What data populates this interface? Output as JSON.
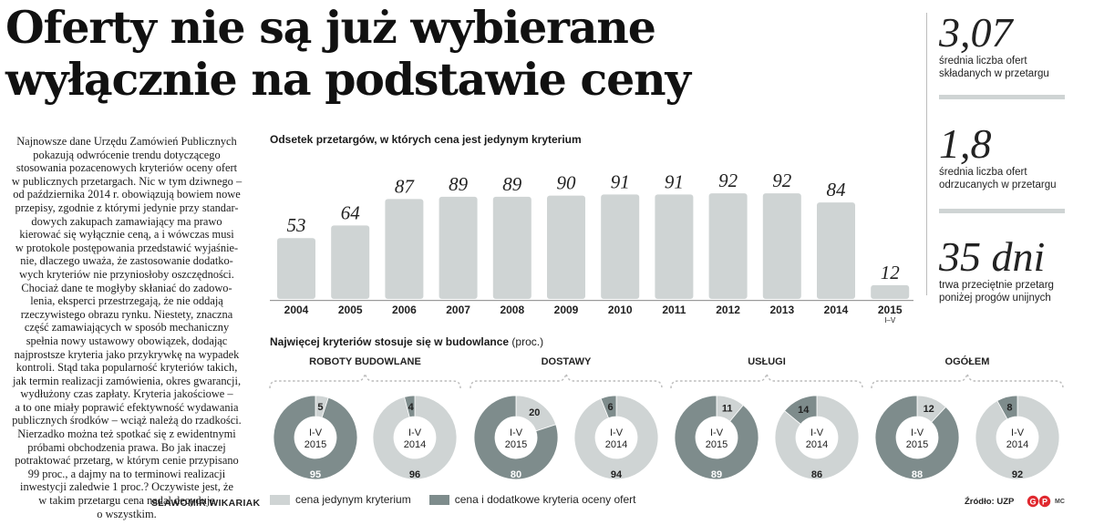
{
  "headline": {
    "line1": "Oferty nie są już wybierane",
    "line2": "wyłącznie na podstawie ceny"
  },
  "article": {
    "paragraphs": [
      [
        "Najnowsze dane Urzędu Zamówień Publicznych",
        "pokazują odwrócenie trendu dotyczącego",
        "stosowania pozacenowych kryteriów oceny ofert",
        "w publicznych przetargach. Nic w tym dziwnego –",
        "od października 2014 r. obowiązują bowiem nowe",
        "przepisy, zgodnie z którymi jedynie przy standar-",
        "dowych zakupach zamawiający ma prawo",
        "kierować się wyłącznie ceną, a i wówczas musi",
        "w protokole postępowania przedstawić wyjaśnie-",
        "nie, dlaczego uważa, że zastosowanie dodatko-",
        "wych kryteriów nie przyniosłoby oszczędności."
      ],
      [
        "Chociaż dane te mogłyby skłaniać do zadowo-",
        "lenia, eksperci przestrzegają, że nie oddają",
        "rzeczywistego obrazu rynku. Niestety, znaczna",
        "część zamawiających w sposób mechaniczny",
        "spełnia nowy ustawowy obowiązek, dodając",
        "najprostsze kryteria jako przykrywkę na wypadek",
        "kontroli. Stąd taka popularność kryteriów takich,",
        "jak termin realizacji zamówienia, okres gwarancji,",
        "wydłużony czas zapłaty. Kryteria jakościowe –",
        "a to one miały poprawić efektywność wydawania",
        "publicznych środków – wciąż należą do rzadkości."
      ],
      [
        "Nierzadko można też spotkać się z ewidentnymi",
        "próbami obchodzenia prawa. Bo jak inaczej",
        "potraktować przetarg, w którym cenie przypisano",
        "99 proc., a dajmy na to terminowi realizacji",
        "inwestycji zaledwie 1 proc.? Oczywiste jest, że",
        "w takim przetargu cena nadal decyduje",
        "o wszystkim."
      ]
    ],
    "byline": "SŁAWOMIR WIKARIAK"
  },
  "stats": [
    {
      "value": "3,07",
      "desc1": "średnia liczba ofert",
      "desc2": "składanych w przetargu"
    },
    {
      "value": "1,8",
      "desc1": "średnia liczba ofert",
      "desc2": "odrzucanych w przetargu"
    },
    {
      "value": "35 dni",
      "desc1": "trwa przeciętnie przetarg",
      "desc2": "poniżej progów unijnych"
    }
  ],
  "chart_data": [
    {
      "type": "bar",
      "title": "Odsetek przetargów, w których cena jest jedynym kryterium",
      "categories": [
        "2004",
        "2005",
        "2006",
        "2007",
        "2008",
        "2009",
        "2010",
        "2011",
        "2012",
        "2013",
        "2014",
        "2015"
      ],
      "category_sublabels": [
        "",
        "",
        "",
        "",
        "",
        "",
        "",
        "",
        "",
        "",
        "",
        "I–V"
      ],
      "values": [
        53,
        64,
        87,
        89,
        89,
        90,
        91,
        91,
        92,
        92,
        84,
        12
      ],
      "ylim": [
        0,
        100
      ],
      "grid": false,
      "bar_color": "#cfd4d4"
    },
    {
      "type": "pie",
      "title_bold": "Najwięcej kryteriów stosuje się w budowlance",
      "title_rest": " (proc.)",
      "groups": [
        {
          "name": "ROBOTY BUDOWLANE",
          "donuts": [
            {
              "period": "I-V",
              "year": "2015",
              "price_only": 5,
              "additional": 95
            },
            {
              "period": "I-V",
              "year": "2014",
              "price_only": 96,
              "additional": 4
            }
          ]
        },
        {
          "name": "DOSTAWY",
          "donuts": [
            {
              "period": "I-V",
              "year": "2015",
              "price_only": 20,
              "additional": 80
            },
            {
              "period": "I-V",
              "year": "2014",
              "price_only": 94,
              "additional": 6
            }
          ]
        },
        {
          "name": "USŁUGI",
          "donuts": [
            {
              "period": "I-V",
              "year": "2015",
              "price_only": 11,
              "additional": 89
            },
            {
              "period": "I-V",
              "year": "2014",
              "price_only": 86,
              "additional": 14
            }
          ]
        },
        {
          "name": "OGÓŁEM",
          "donuts": [
            {
              "period": "I-V",
              "year": "2015",
              "price_only": 12,
              "additional": 88
            },
            {
              "period": "I-V",
              "year": "2014",
              "price_only": 92,
              "additional": 8
            }
          ]
        }
      ],
      "legend": [
        {
          "label": "cena jedynym kryterium",
          "color": "#cfd4d4"
        },
        {
          "label": "cena i dodatkowe kryteria oceny ofert",
          "color": "#7e8c8c"
        }
      ],
      "legend_placement": "bottom-left"
    }
  ],
  "source": "Źródło: UZP",
  "logo": {
    "text": "GP",
    "color": "#e0292f"
  },
  "signature": "MC"
}
